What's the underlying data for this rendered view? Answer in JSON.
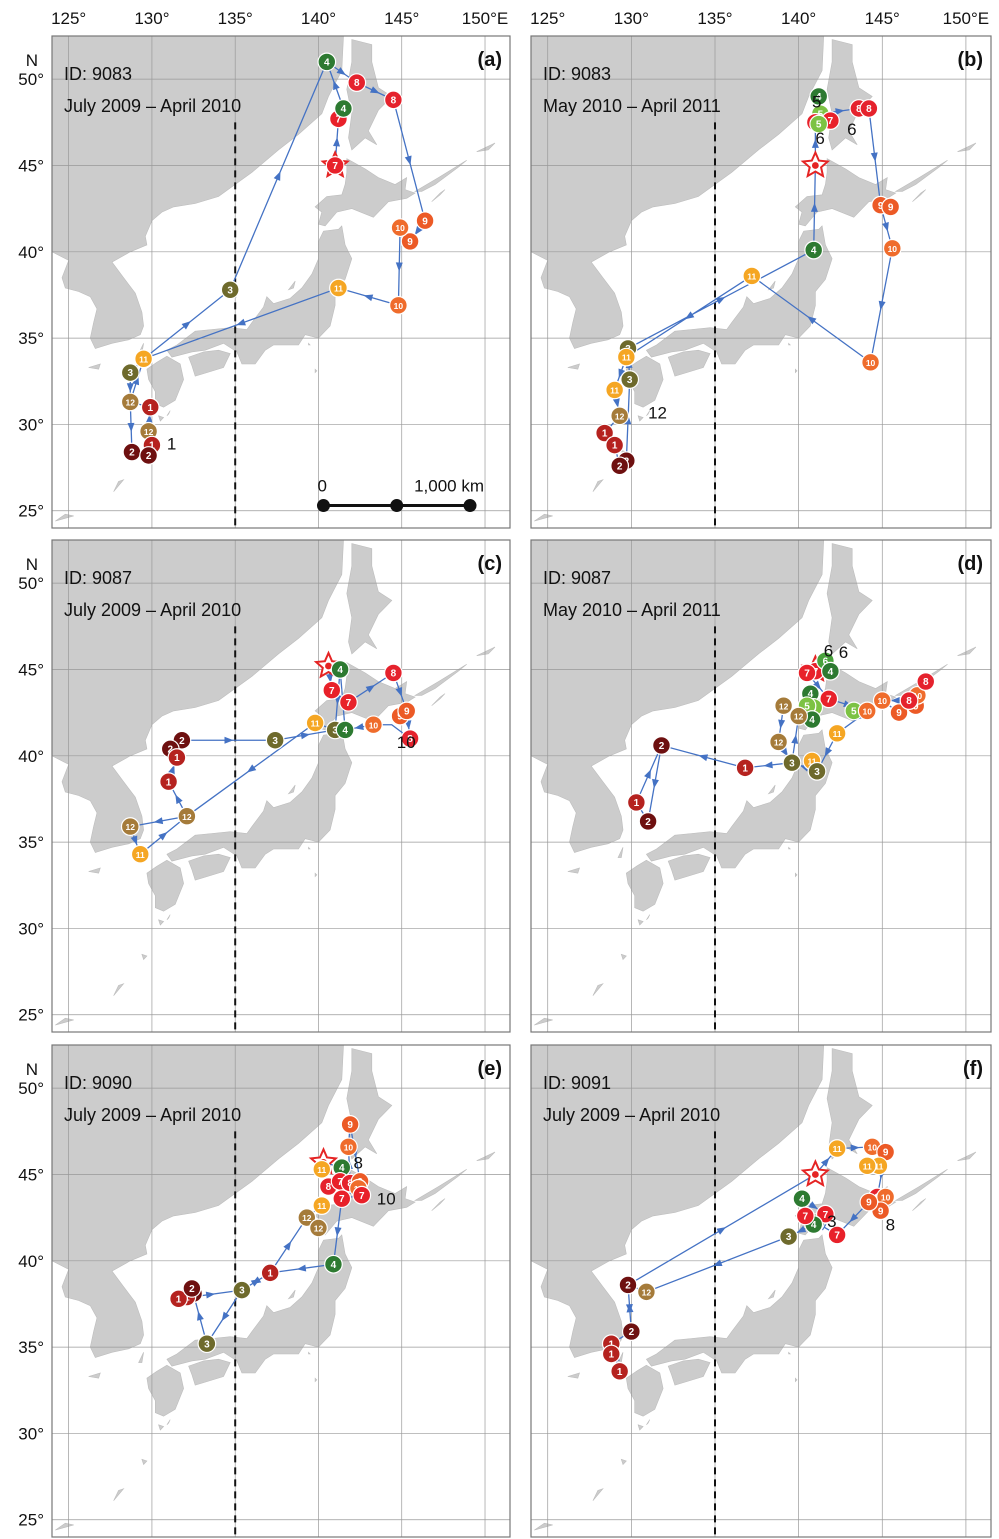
{
  "colors": {
    "sea": "#ffffff",
    "land": "#cccccc",
    "grid": "#999999",
    "frame": "#777777",
    "track": "#4472c4",
    "months": {
      "1": "#b5221f",
      "2": "#6e1010",
      "3": "#6e6a2c",
      "4": "#2d7a31",
      "5": "#7cc243",
      "6": "#48a23c",
      "7": "#e8212a",
      "8": "#e5222d",
      "9": "#ec5a26",
      "10": "#ef6c2c",
      "11": "#f5a623",
      "12": "#a57b3a"
    },
    "release": "#e52424"
  },
  "axes": {
    "lon_ticks": [
      125,
      130,
      135,
      140,
      145,
      150
    ],
    "lat_ticks": [
      25,
      30,
      35,
      40,
      45,
      50
    ],
    "top_labels": [
      "125°",
      "130°",
      "135°",
      "140°",
      "145°",
      "150°E"
    ],
    "left_labels": [
      "25°",
      "30°",
      "35°",
      "40°",
      "45°",
      "50°"
    ],
    "north_label": "N",
    "meridian_dashed": 135
  },
  "scale_bar": {
    "zero": "0",
    "end": "1,000 km"
  },
  "panels": [
    {
      "tag": "(a)",
      "id_label": "ID: 9083",
      "period": "July 2009 – April 2010",
      "release": [
        141.0,
        45.0
      ],
      "points": [
        [
          141.0,
          45.0,
          7
        ],
        [
          141.2,
          47.7,
          7
        ],
        [
          141.5,
          48.3,
          4
        ],
        [
          140.5,
          51.0,
          4
        ],
        [
          142.3,
          49.8,
          8
        ],
        [
          144.5,
          48.8,
          8
        ],
        [
          146.4,
          41.8,
          9
        ],
        [
          145.5,
          40.6,
          9
        ],
        [
          144.9,
          41.4,
          10
        ],
        [
          144.8,
          36.9,
          10
        ],
        [
          141.2,
          37.9,
          11
        ],
        [
          134.7,
          37.8,
          3
        ],
        [
          129.5,
          33.8,
          11
        ],
        [
          128.7,
          33.0,
          3
        ],
        [
          128.7,
          31.3,
          12
        ],
        [
          129.9,
          31.0,
          1
        ],
        [
          129.8,
          29.6,
          12
        ],
        [
          130.0,
          28.8,
          1
        ],
        [
          128.8,
          28.4,
          2
        ],
        [
          129.8,
          28.2,
          2
        ]
      ],
      "path": [
        [
          141.0,
          45.0
        ],
        [
          141.2,
          47.7
        ],
        [
          141.5,
          48.3
        ],
        [
          140.5,
          51.0
        ],
        [
          142.3,
          49.8
        ],
        [
          144.5,
          48.8
        ],
        [
          146.4,
          41.8
        ],
        [
          145.5,
          40.6
        ],
        [
          144.9,
          41.4
        ],
        [
          144.8,
          36.9
        ],
        [
          141.2,
          37.9
        ],
        [
          129.5,
          33.8
        ],
        [
          128.7,
          33.0
        ],
        [
          128.7,
          31.3
        ],
        [
          128.8,
          28.4
        ],
        [
          129.8,
          28.2
        ],
        [
          130.0,
          28.8
        ],
        [
          129.8,
          29.6
        ],
        [
          129.9,
          31.0
        ],
        [
          128.7,
          31.3
        ],
        [
          129.5,
          33.8
        ],
        [
          134.7,
          37.8
        ],
        [
          140.5,
          51.0
        ]
      ],
      "extra_labels": [
        {
          "text": "1",
          "lon": 130.9,
          "lat": 28.9
        }
      ]
    },
    {
      "tag": "(b)",
      "id_label": "ID: 9083",
      "period": "May 2010 – April 2011",
      "release": [
        141.0,
        45.0
      ],
      "points": [
        [
          141.2,
          49.0,
          4
        ],
        [
          141.3,
          48.0,
          5
        ],
        [
          141.0,
          47.5,
          7
        ],
        [
          141.9,
          47.6,
          7
        ],
        [
          141.2,
          47.4,
          5
        ],
        [
          143.6,
          48.3,
          8
        ],
        [
          144.2,
          48.3,
          8
        ],
        [
          144.9,
          42.7,
          9
        ],
        [
          145.5,
          42.6,
          9
        ],
        [
          145.6,
          40.2,
          10
        ],
        [
          144.3,
          33.6,
          10
        ],
        [
          140.9,
          40.1,
          4
        ],
        [
          137.2,
          38.6,
          11
        ],
        [
          129.8,
          34.4,
          3
        ],
        [
          129.7,
          33.9,
          11
        ],
        [
          129.0,
          32.0,
          11
        ],
        [
          129.9,
          32.6,
          3
        ],
        [
          129.3,
          30.5,
          12
        ],
        [
          128.4,
          29.5,
          1
        ],
        [
          129.0,
          28.8,
          1
        ],
        [
          129.7,
          27.9,
          2
        ],
        [
          129.3,
          27.6,
          2
        ]
      ],
      "path": [
        [
          141.0,
          45.0
        ],
        [
          141.0,
          47.5
        ],
        [
          141.3,
          48.0
        ],
        [
          143.6,
          48.3
        ],
        [
          144.2,
          48.3
        ],
        [
          144.9,
          42.7
        ],
        [
          145.6,
          40.2
        ],
        [
          144.3,
          33.6
        ],
        [
          137.2,
          38.6
        ],
        [
          129.7,
          33.9
        ],
        [
          129.0,
          32.0
        ],
        [
          129.3,
          30.5
        ],
        [
          128.4,
          29.5
        ],
        [
          129.0,
          28.8
        ],
        [
          129.3,
          27.6
        ],
        [
          129.7,
          27.9
        ],
        [
          129.9,
          32.6
        ],
        [
          129.8,
          34.4
        ],
        [
          140.9,
          40.1
        ],
        [
          141.0,
          45.0
        ]
      ],
      "extra_labels": [
        {
          "text": "5",
          "lon": 140.8,
          "lat": 48.7
        },
        {
          "text": "6",
          "lon": 141.0,
          "lat": 46.6
        },
        {
          "text": "6",
          "lon": 142.9,
          "lat": 47.1
        },
        {
          "text": "12",
          "lon": 131.0,
          "lat": 30.7
        }
      ]
    },
    {
      "tag": "(c)",
      "id_label": "ID: 9087",
      "period": "July 2009 – April 2010",
      "release": [
        140.6,
        45.2
      ],
      "points": [
        [
          141.3,
          45.0,
          4
        ],
        [
          140.8,
          43.8,
          7
        ],
        [
          141.8,
          43.1,
          7
        ],
        [
          144.5,
          44.8,
          8
        ],
        [
          144.9,
          42.3,
          9
        ],
        [
          145.3,
          42.6,
          9
        ],
        [
          145.5,
          41.0,
          8
        ],
        [
          143.3,
          41.8,
          10
        ],
        [
          141.0,
          41.5,
          3
        ],
        [
          141.6,
          41.5,
          4
        ],
        [
          139.8,
          41.9,
          11
        ],
        [
          137.4,
          40.9,
          3
        ],
        [
          131.8,
          40.9,
          2
        ],
        [
          131.1,
          40.4,
          2
        ],
        [
          131.5,
          39.9,
          1
        ],
        [
          131.0,
          38.5,
          1
        ],
        [
          132.1,
          36.5,
          12
        ],
        [
          128.7,
          35.9,
          12
        ],
        [
          129.3,
          34.3,
          11
        ]
      ],
      "path": [
        [
          140.6,
          45.2
        ],
        [
          140.8,
          43.8
        ],
        [
          141.8,
          43.1
        ],
        [
          144.5,
          44.8
        ],
        [
          145.3,
          42.6
        ],
        [
          145.5,
          41.0
        ],
        [
          144.4,
          41.8
        ],
        [
          143.3,
          41.8
        ],
        [
          141.6,
          41.5
        ],
        [
          141.3,
          45.0
        ],
        [
          141.0,
          41.5
        ],
        [
          139.8,
          41.9
        ],
        [
          132.1,
          36.5
        ],
        [
          128.7,
          35.9
        ],
        [
          129.3,
          34.3
        ],
        [
          132.1,
          36.5
        ],
        [
          131.0,
          38.5
        ],
        [
          131.5,
          39.9
        ],
        [
          131.1,
          40.4
        ],
        [
          131.8,
          40.9
        ],
        [
          137.4,
          40.9
        ],
        [
          141.0,
          41.5
        ]
      ],
      "extra_labels": [
        {
          "text": "10",
          "lon": 144.7,
          "lat": 40.8
        }
      ]
    },
    {
      "tag": "(d)",
      "id_label": "ID: 9087",
      "period": "May 2010 – April 2011",
      "release": [
        141.0,
        45.0
      ],
      "points": [
        [
          141.0,
          44.9,
          7
        ],
        [
          141.6,
          45.5,
          6
        ],
        [
          141.9,
          44.9,
          4
        ],
        [
          140.5,
          44.8,
          7
        ],
        [
          141.8,
          43.3,
          7
        ],
        [
          143.3,
          42.6,
          5
        ],
        [
          140.7,
          43.6,
          4
        ],
        [
          140.9,
          42.8,
          5
        ],
        [
          140.5,
          42.9,
          5
        ],
        [
          145.0,
          43.2,
          10
        ],
        [
          146.0,
          42.5,
          9
        ],
        [
          147.0,
          42.9,
          9
        ],
        [
          147.1,
          43.5,
          10
        ],
        [
          147.6,
          44.3,
          8
        ],
        [
          146.6,
          43.2,
          8
        ],
        [
          144.1,
          42.6,
          10
        ],
        [
          142.3,
          41.3,
          11
        ],
        [
          139.1,
          42.9,
          12
        ],
        [
          138.8,
          40.8,
          12
        ],
        [
          139.6,
          39.6,
          3
        ],
        [
          140.8,
          39.7,
          11
        ],
        [
          141.1,
          39.1,
          3
        ],
        [
          136.8,
          39.3,
          1
        ],
        [
          131.8,
          40.6,
          2
        ],
        [
          130.3,
          37.3,
          1
        ],
        [
          131.0,
          36.2,
          2
        ],
        [
          140.8,
          42.1,
          4
        ],
        [
          140.0,
          42.3,
          12
        ]
      ],
      "path": [
        [
          141.0,
          44.9
        ],
        [
          140.5,
          44.8
        ],
        [
          141.8,
          43.3
        ],
        [
          144.1,
          42.6
        ],
        [
          145.0,
          43.2
        ],
        [
          146.0,
          42.5
        ],
        [
          147.6,
          44.3
        ],
        [
          146.6,
          43.2
        ],
        [
          145.0,
          43.2
        ],
        [
          142.3,
          41.3
        ],
        [
          141.1,
          39.1
        ],
        [
          139.6,
          39.6
        ],
        [
          140.0,
          42.3
        ],
        [
          139.1,
          42.9
        ],
        [
          138.8,
          40.8
        ],
        [
          139.6,
          39.6
        ],
        [
          136.8,
          39.3
        ],
        [
          131.8,
          40.6
        ],
        [
          131.0,
          36.2
        ],
        [
          130.3,
          37.3
        ],
        [
          131.8,
          40.6
        ]
      ],
      "extra_labels": [
        {
          "text": "6",
          "lon": 141.5,
          "lat": 46.1
        },
        {
          "text": "6",
          "lon": 142.4,
          "lat": 46.0
        }
      ]
    },
    {
      "tag": "(e)",
      "id_label": "ID: 9090",
      "period": "July 2009 – April 2010",
      "release": [
        140.3,
        45.7
      ],
      "points": [
        [
          141.9,
          47.9,
          9
        ],
        [
          141.8,
          46.6,
          10
        ],
        [
          141.4,
          45.4,
          4
        ],
        [
          140.2,
          45.3,
          11
        ],
        [
          140.6,
          44.3,
          8
        ],
        [
          141.3,
          44.6,
          7
        ],
        [
          141.9,
          44.5,
          8
        ],
        [
          142.5,
          44.6,
          9
        ],
        [
          142.4,
          44.2,
          10
        ],
        [
          142.6,
          43.8,
          7
        ],
        [
          141.4,
          43.6,
          7
        ],
        [
          140.2,
          43.2,
          11
        ],
        [
          139.3,
          42.5,
          12
        ],
        [
          140.0,
          41.9,
          12
        ],
        [
          140.9,
          39.8,
          4
        ],
        [
          137.1,
          39.3,
          1
        ],
        [
          135.4,
          38.3,
          3
        ],
        [
          132.5,
          38.1,
          2
        ],
        [
          132.1,
          37.9,
          1
        ],
        [
          131.6,
          37.8,
          1
        ],
        [
          132.4,
          38.4,
          2
        ],
        [
          133.3,
          35.2,
          3
        ]
      ],
      "path": [
        [
          140.3,
          45.7
        ],
        [
          141.4,
          45.4
        ],
        [
          142.6,
          43.8
        ],
        [
          141.4,
          43.6
        ],
        [
          140.6,
          44.3
        ],
        [
          141.3,
          44.6
        ],
        [
          141.9,
          44.5
        ],
        [
          141.8,
          46.6
        ],
        [
          141.9,
          47.9
        ],
        [
          142.5,
          44.6
        ],
        [
          142.4,
          44.2
        ],
        [
          141.4,
          43.6
        ],
        [
          140.9,
          39.8
        ],
        [
          137.1,
          39.3
        ],
        [
          135.4,
          38.3
        ],
        [
          133.3,
          35.2
        ],
        [
          132.4,
          38.4
        ],
        [
          131.6,
          37.8
        ],
        [
          135.4,
          38.3
        ],
        [
          137.1,
          39.3
        ],
        [
          139.3,
          42.5
        ],
        [
          140.2,
          43.2
        ]
      ],
      "extra_labels": [
        {
          "text": "8",
          "lon": 142.1,
          "lat": 45.7
        },
        {
          "text": "10",
          "lon": 143.5,
          "lat": 43.6
        }
      ]
    },
    {
      "tag": "(f)",
      "id_label": "ID: 9091",
      "period": "July 2009 – April 2010",
      "release": [
        141.0,
        45.0
      ],
      "points": [
        [
          142.3,
          46.5,
          11
        ],
        [
          144.4,
          46.6,
          10
        ],
        [
          145.2,
          46.3,
          9
        ],
        [
          144.8,
          45.5,
          11
        ],
        [
          144.1,
          45.5,
          11
        ],
        [
          144.7,
          43.7,
          8
        ],
        [
          145.2,
          43.7,
          10
        ],
        [
          144.9,
          42.9,
          9
        ],
        [
          144.2,
          43.4,
          9
        ],
        [
          142.3,
          41.5,
          7
        ],
        [
          141.0,
          42.2,
          4
        ],
        [
          141.6,
          42.7,
          7
        ],
        [
          140.2,
          43.6,
          4
        ],
        [
          140.9,
          42.1,
          4
        ],
        [
          140.4,
          42.6,
          7
        ],
        [
          139.4,
          41.4,
          3
        ],
        [
          130.9,
          38.2,
          12
        ],
        [
          129.8,
          38.6,
          2
        ],
        [
          130.0,
          35.9,
          2
        ],
        [
          128.8,
          35.2,
          1
        ],
        [
          128.8,
          34.6,
          1
        ],
        [
          129.3,
          33.6,
          1
        ]
      ],
      "path": [
        [
          141.0,
          45.0
        ],
        [
          142.3,
          46.5
        ],
        [
          144.4,
          46.6
        ],
        [
          145.2,
          46.3
        ],
        [
          144.7,
          43.7
        ],
        [
          144.2,
          43.4
        ],
        [
          142.3,
          41.5
        ],
        [
          140.4,
          42.6
        ],
        [
          140.2,
          43.6
        ],
        [
          141.6,
          42.7
        ],
        [
          140.9,
          42.1
        ],
        [
          139.4,
          41.4
        ],
        [
          130.9,
          38.2
        ],
        [
          129.8,
          38.6
        ],
        [
          130.0,
          35.9
        ],
        [
          128.8,
          35.2
        ],
        [
          129.3,
          33.6
        ],
        [
          128.8,
          35.2
        ],
        [
          130.0,
          35.9
        ],
        [
          129.8,
          38.6
        ],
        [
          141.0,
          45.0
        ]
      ],
      "extra_labels": [
        {
          "text": "3",
          "lon": 141.7,
          "lat": 42.3
        },
        {
          "text": "8",
          "lon": 145.2,
          "lat": 42.1
        }
      ]
    }
  ]
}
